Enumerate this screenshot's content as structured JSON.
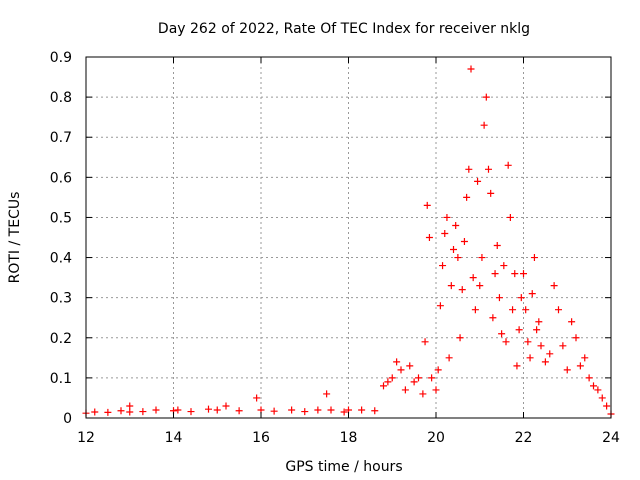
{
  "chart_data": {
    "type": "scatter",
    "title": "Day 262 of 2022, Rate Of TEC Index for receiver nklg",
    "xlabel": "GPS time / hours",
    "ylabel": "ROTI / TECUs",
    "xlim": [
      12,
      24
    ],
    "ylim": [
      0,
      0.9
    ],
    "grid": true,
    "marker": "+",
    "color": "#ff0000",
    "x_ticks": [
      "12",
      "14",
      "16",
      "18",
      "20",
      "22",
      "24"
    ],
    "y_ticks": [
      "0",
      "0.1",
      "0.2",
      "0.3",
      "0.4",
      "0.5",
      "0.6",
      "0.7",
      "0.8",
      "0.9"
    ],
    "series": [
      {
        "x": [
          12.0,
          12.2,
          12.5,
          12.8,
          13.0,
          13.0,
          13.3,
          13.6,
          14.0,
          14.1,
          14.4,
          14.8,
          15.0,
          15.2,
          15.5,
          15.9,
          16.0,
          16.3,
          16.7,
          17.0,
          17.3,
          17.5,
          17.6,
          17.9,
          18.0,
          18.3,
          18.6,
          18.8,
          18.9,
          19.0,
          19.1,
          19.2,
          19.3,
          19.4,
          19.5,
          19.6,
          19.7,
          19.75,
          19.8,
          19.85,
          19.9,
          20.0,
          20.05,
          20.1,
          20.15,
          20.2,
          20.25,
          20.3,
          20.35,
          20.4,
          20.45,
          20.5,
          20.55,
          20.6,
          20.65,
          20.7,
          20.75,
          20.8,
          20.85,
          20.9,
          20.95,
          21.0,
          21.05,
          21.1,
          21.15,
          21.2,
          21.25,
          21.3,
          21.35,
          21.4,
          21.45,
          21.5,
          21.55,
          21.6,
          21.65,
          21.7,
          21.75,
          21.8,
          21.85,
          21.9,
          21.95,
          22.0,
          22.05,
          22.1,
          22.15,
          22.2,
          22.25,
          22.3,
          22.35,
          22.4,
          22.5,
          22.6,
          22.7,
          22.8,
          22.9,
          23.0,
          23.1,
          23.2,
          23.3,
          23.4,
          23.5,
          23.6,
          23.7,
          23.8,
          23.9,
          24.0
        ],
        "y": [
          0.012,
          0.015,
          0.014,
          0.018,
          0.03,
          0.015,
          0.016,
          0.02,
          0.018,
          0.02,
          0.016,
          0.022,
          0.02,
          0.03,
          0.018,
          0.05,
          0.02,
          0.017,
          0.02,
          0.016,
          0.02,
          0.06,
          0.02,
          0.015,
          0.02,
          0.02,
          0.018,
          0.08,
          0.09,
          0.1,
          0.14,
          0.12,
          0.07,
          0.13,
          0.09,
          0.1,
          0.06,
          0.19,
          0.53,
          0.45,
          0.1,
          0.07,
          0.12,
          0.28,
          0.38,
          0.46,
          0.5,
          0.15,
          0.33,
          0.42,
          0.48,
          0.4,
          0.2,
          0.32,
          0.44,
          0.55,
          0.62,
          0.87,
          0.35,
          0.27,
          0.59,
          0.33,
          0.4,
          0.73,
          0.8,
          0.62,
          0.56,
          0.25,
          0.36,
          0.43,
          0.3,
          0.21,
          0.38,
          0.19,
          0.63,
          0.5,
          0.27,
          0.36,
          0.13,
          0.22,
          0.3,
          0.36,
          0.27,
          0.19,
          0.15,
          0.31,
          0.4,
          0.22,
          0.24,
          0.18,
          0.14,
          0.16,
          0.33,
          0.27,
          0.18,
          0.12,
          0.24,
          0.2,
          0.13,
          0.15,
          0.1,
          0.08,
          0.07,
          0.05,
          0.03,
          0.01
        ]
      }
    ]
  }
}
